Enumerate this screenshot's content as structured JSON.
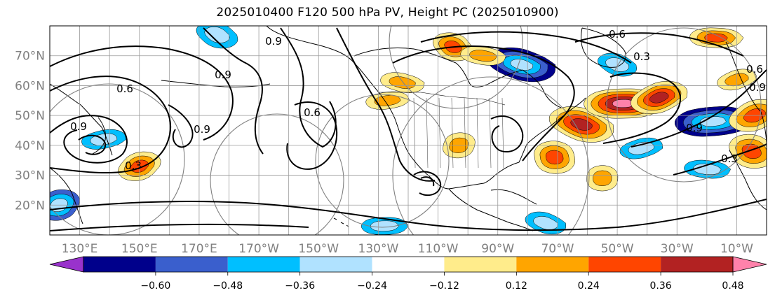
{
  "title": "2025010400 F120 500 hPa PV, Height PC (2025010900)",
  "map": {
    "lat_labels": [
      "70°N",
      "60°N",
      "50°N",
      "40°N",
      "30°N",
      "20°N"
    ],
    "lat_values": [
      70,
      60,
      50,
      40,
      30,
      20
    ],
    "lon_labels": [
      "130°E",
      "150°E",
      "170°E",
      "170°W",
      "150°W",
      "130°W",
      "110°W",
      "90°W",
      "70°W",
      "50°W",
      "30°W",
      "10°W"
    ],
    "lon_values": [
      130,
      150,
      170,
      190,
      210,
      230,
      250,
      270,
      290,
      310,
      330,
      350
    ],
    "lon_range": [
      120,
      360
    ],
    "lat_range": [
      10,
      80
    ],
    "contour_labels": [
      "0.6",
      "0.9",
      "0.3",
      "0.9",
      "0.9",
      "0.9",
      "0.6",
      "0.3",
      "0.6",
      "0.9",
      "0.3",
      "0.6",
      "0.9"
    ],
    "grid": true
  },
  "colorbar": {
    "tick_labels": [
      "−0.60",
      "−0.48",
      "−0.36",
      "−0.24",
      "−0.12",
      "0.12",
      "0.24",
      "0.36",
      "0.48",
      "0.60"
    ],
    "colors": [
      "#9932CC",
      "#00008B",
      "#3A5FCD",
      "#00BFFF",
      "#B0E2FF",
      "#FFFFFF",
      "#FFEC8B",
      "#FFA500",
      "#FF4500",
      "#B22222",
      "#FF82AB"
    ],
    "extend": "both"
  },
  "chart_data": {
    "type": "heatmap",
    "title": "2025010400 F120 500 hPa PV, Height PC (2025010900)",
    "xlim": [
      120,
      360
    ],
    "ylim": [
      10,
      80
    ],
    "levels": [
      -0.6,
      -0.48,
      -0.36,
      -0.24,
      -0.12,
      0.12,
      0.24,
      0.36,
      0.48,
      0.6
    ],
    "features": [
      {
        "lon": 298,
        "lat": 47,
        "value": 0.55
      },
      {
        "lon": 312,
        "lat": 54,
        "value": 0.6
      },
      {
        "lon": 324,
        "lat": 56,
        "value": 0.48
      },
      {
        "lon": 289,
        "lat": 36,
        "value": 0.42
      },
      {
        "lon": 278,
        "lat": 67,
        "value": -0.55
      },
      {
        "lon": 342,
        "lat": 48,
        "value": -0.58
      },
      {
        "lon": 356,
        "lat": 50,
        "value": 0.45
      },
      {
        "lon": 355,
        "lat": 38,
        "value": 0.45
      },
      {
        "lon": 238,
        "lat": 61,
        "value": 0.3
      },
      {
        "lon": 233,
        "lat": 55,
        "value": 0.28
      },
      {
        "lon": 150,
        "lat": 33,
        "value": 0.38
      },
      {
        "lon": 255,
        "lat": 73,
        "value": 0.36
      },
      {
        "lon": 265,
        "lat": 70,
        "value": 0.3
      },
      {
        "lon": 138,
        "lat": 42,
        "value": -0.3
      },
      {
        "lon": 123,
        "lat": 20,
        "value": -0.4
      },
      {
        "lon": 176,
        "lat": 77,
        "value": -0.35
      },
      {
        "lon": 340,
        "lat": 32,
        "value": -0.3
      },
      {
        "lon": 318,
        "lat": 39,
        "value": -0.3
      },
      {
        "lon": 257,
        "lat": 40,
        "value": 0.3
      },
      {
        "lon": 310,
        "lat": 67,
        "value": -0.3
      },
      {
        "lon": 343,
        "lat": 76,
        "value": 0.36
      },
      {
        "lon": 350,
        "lat": 62,
        "value": 0.28
      },
      {
        "lon": 305,
        "lat": 29,
        "value": 0.3
      },
      {
        "lon": 286,
        "lat": 14,
        "value": -0.3
      },
      {
        "lon": 232,
        "lat": 13,
        "value": -0.3
      }
    ]
  }
}
